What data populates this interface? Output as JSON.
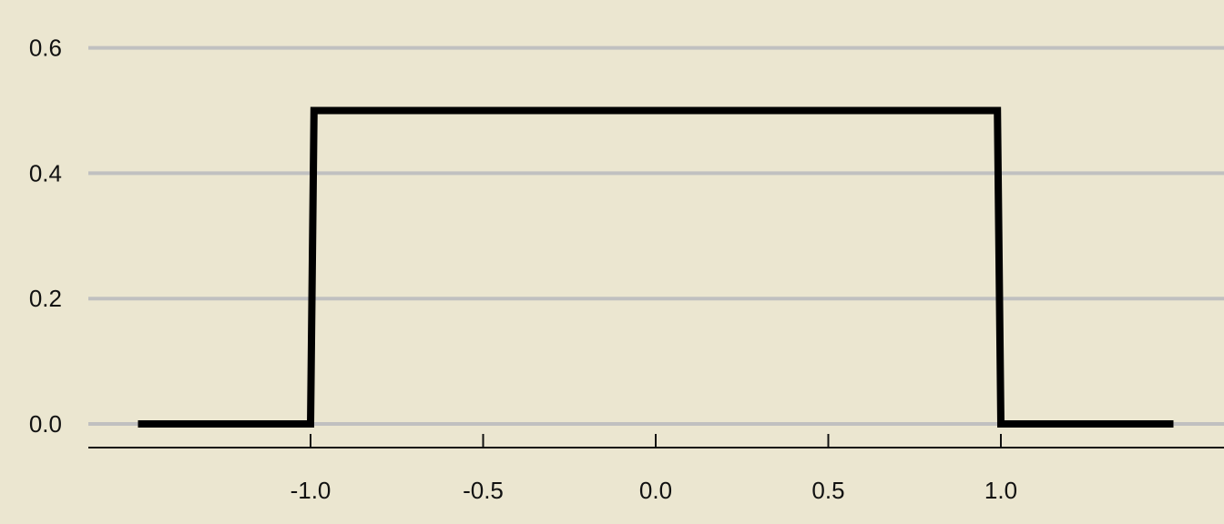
{
  "chart_data": {
    "type": "line",
    "title": "",
    "xlabel": "",
    "ylabel": "",
    "xlim": [
      -1.5,
      1.5
    ],
    "ylim": [
      0.0,
      0.6
    ],
    "x_ticks": [
      -1.0,
      -0.5,
      0.0,
      0.5,
      1.0
    ],
    "x_tick_labels": [
      "-1.0",
      "-0.5",
      "0.0",
      "0.5",
      "1.0"
    ],
    "y_ticks": [
      0.0,
      0.2,
      0.4,
      0.6
    ],
    "y_tick_labels": [
      "0.0",
      "0.2",
      "0.4",
      "0.6"
    ],
    "grid": "horizontal",
    "legend": "none",
    "series": [
      {
        "x": [
          -1.5,
          -1.0,
          -0.99,
          0.99,
          1.0,
          1.5
        ],
        "y": [
          0.0,
          0.0,
          0.5,
          0.5,
          0.0,
          0.0
        ]
      }
    ],
    "colors": {
      "background": "#ebe6d0",
      "grid": "#c0c0c0",
      "line": "#000000",
      "axis": "#111111"
    }
  }
}
